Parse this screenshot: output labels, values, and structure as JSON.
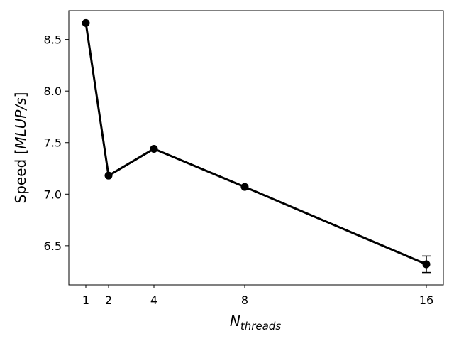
{
  "chart_data": {
    "type": "line",
    "x": [
      1,
      2,
      4,
      8,
      16
    ],
    "series": [
      {
        "values": [
          8.66,
          7.18,
          7.44,
          7.07,
          6.32
        ],
        "error": [
          0.0,
          0.0,
          0.0,
          0.0,
          0.08
        ],
        "color": "#000000",
        "marker": "circle"
      }
    ],
    "xlabel": {
      "base": "N",
      "subscript": "threads"
    },
    "ylabel": {
      "prefix": "Speed [",
      "italic": "MLUP/s",
      "suffix": "]"
    },
    "xticks": [
      1,
      2,
      4,
      8,
      16
    ],
    "yticks": [
      6.5,
      7.0,
      7.5,
      8.0,
      8.5
    ],
    "ytick_labels": [
      "6.5",
      "7.0",
      "7.5",
      "8.0",
      "8.5"
    ],
    "xlim": [
      0.25,
      16.75
    ],
    "ylim": [
      6.12,
      8.78
    ],
    "grid": false,
    "legend": false
  }
}
